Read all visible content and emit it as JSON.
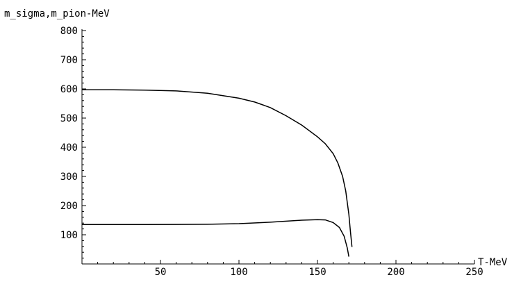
{
  "chart_data": {
    "type": "line",
    "title": "",
    "xlabel": "T-MeV",
    "ylabel": "m_sigma,m_pion-MeV",
    "xlim": [
      0,
      250
    ],
    "ylim": [
      0,
      800
    ],
    "x_ticks": [
      50,
      100,
      150,
      200,
      250
    ],
    "y_ticks": [
      100,
      200,
      300,
      400,
      500,
      600,
      700,
      800
    ],
    "x_tick_labels": [
      "50",
      "100",
      "150",
      "200",
      "250"
    ],
    "y_tick_labels": [
      "100",
      "200",
      "300",
      "400",
      "500",
      "600",
      "700",
      "800"
    ],
    "grid": false,
    "legend": "none",
    "series": [
      {
        "x": [
          0,
          20,
          40,
          60,
          80,
          100,
          110,
          120,
          130,
          140,
          150,
          155,
          160,
          163,
          166,
          168,
          170,
          171,
          172
        ],
        "y": [
          597,
          597,
          596,
          593,
          585,
          568,
          555,
          536,
          508,
          476,
          436,
          412,
          378,
          346,
          300,
          250,
          170,
          110,
          58
        ]
      },
      {
        "x": [
          0,
          40,
          80,
          100,
          120,
          140,
          150,
          155,
          160,
          164,
          167,
          169,
          170
        ],
        "y": [
          135,
          135,
          136,
          138,
          143,
          150,
          152,
          151,
          142,
          125,
          95,
          55,
          25
        ]
      }
    ]
  }
}
